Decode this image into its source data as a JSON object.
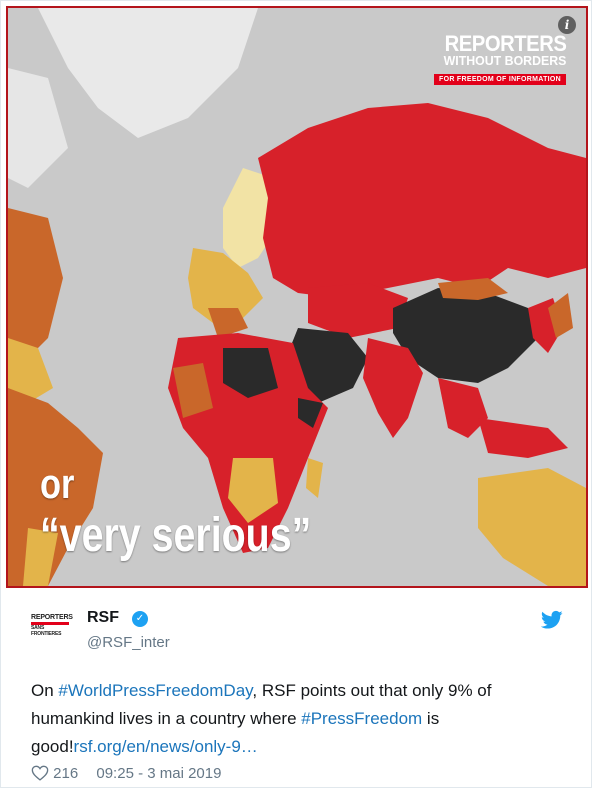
{
  "media": {
    "logo": {
      "line1": "REPORTERS",
      "line2": "WITHOUT BORDERS",
      "tagline": "FOR FREEDOM OF INFORMATION"
    },
    "info_icon": "info-icon",
    "caption_line1": "or",
    "caption_line2": "“very serious”",
    "colors": {
      "very_serious": "#2a2a2a",
      "difficult": "#d7212a",
      "problematic": "#c9672a",
      "satisfactory": "#e3b44a",
      "good": "#f2e3a5",
      "ocean": "#c9c9c9"
    }
  },
  "header": {
    "avatar": {
      "line1": "REPORTERS",
      "line2": "SANS FRONTIERES"
    },
    "name": "RSF",
    "verified_icon": "verified-badge-icon",
    "handle": "@RSF_inter",
    "brand_icon": "twitter-bird-icon"
  },
  "tweet": {
    "text_1": "On ",
    "hashtag_1": "#WorldPressFreedomDay",
    "text_2": ", RSF points out that only 9% of humankind lives in a country where ",
    "hashtag_2": "#PressFreedom",
    "text_3": " is good!",
    "link": "rsf.org/en/news/only-9…"
  },
  "footer": {
    "like_icon": "heart-icon",
    "likes": "216",
    "timestamp": "09:25 - 3 mai 2019"
  }
}
